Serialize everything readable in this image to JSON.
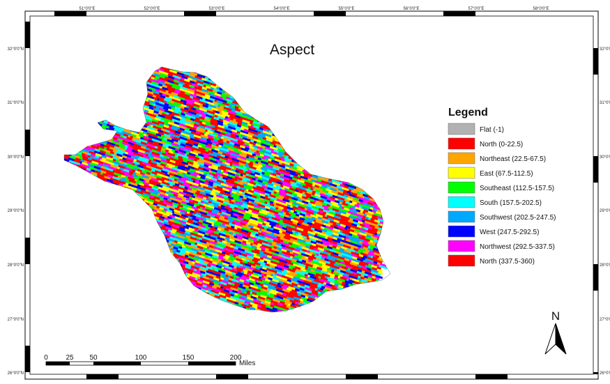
{
  "title": "Aspect",
  "graticule": {
    "longitudes": [
      "51°0'0\"E",
      "52°0'0\"E",
      "53°0'0\"E",
      "54°0'0\"E",
      "55°0'0\"E",
      "56°0'0\"E",
      "57°0'0\"E",
      "58°0'0\"E"
    ],
    "latitudes": [
      "32°0'0\"N",
      "31°0'0\"N",
      "30°0'0\"N",
      "29°0'0\"N",
      "28°0'0\"N",
      "27°0'0\"N",
      "26°0'0\"N"
    ],
    "latitudes_right": [
      "32°0'0",
      "31°0'0",
      "30°0'0",
      "29°0'0",
      "28°0'0",
      "27°0'0",
      "26°0'0"
    ]
  },
  "legend": {
    "title": "Legend",
    "items": [
      {
        "label": "Flat (-1)",
        "color": "#b2b2b2"
      },
      {
        "label": "North (0-22.5)",
        "color": "#ff0000"
      },
      {
        "label": "Northeast (22.5-67.5)",
        "color": "#ffa500"
      },
      {
        "label": "East (67.5-112.5)",
        "color": "#ffff00"
      },
      {
        "label": "Southeast (112.5-157.5)",
        "color": "#00ff00"
      },
      {
        "label": "South (157.5-202.5)",
        "color": "#00ffff"
      },
      {
        "label": "Southwest (202.5-247.5)",
        "color": "#00a8ff"
      },
      {
        "label": "West (247.5-292.5)",
        "color": "#0000ff"
      },
      {
        "label": "Northwest (292.5-337.5)",
        "color": "#ff00ff"
      },
      {
        "label": "North (337.5-360)",
        "color": "#ff0000"
      }
    ]
  },
  "scalebar": {
    "ticks": [
      "0",
      "25",
      "50",
      "100",
      "150",
      "200"
    ],
    "unit": "Miles"
  },
  "north_arrow": {
    "label": "N"
  }
}
